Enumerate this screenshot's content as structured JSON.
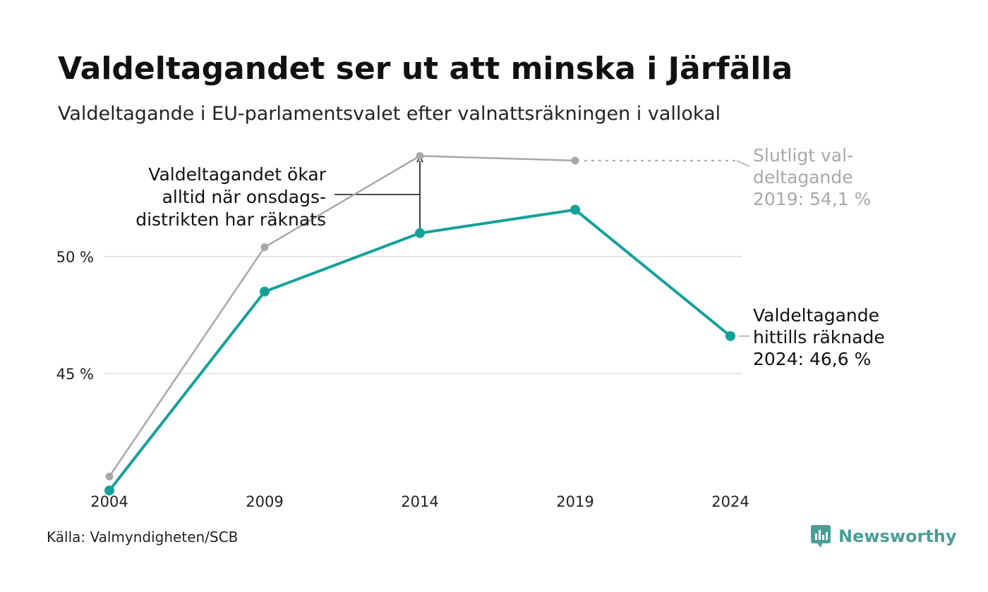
{
  "title": "Valdeltagandet ser ut att minska i Järfälla",
  "subtitle": "Valdeltagande i EU-parlamentsvalet efter valnattsräkningen i vallokal",
  "source": "Källa: Valmyndigheten/SCB",
  "brand": {
    "name": "Newsworthy",
    "icon": "newsworthy-logo-icon"
  },
  "chart_data": {
    "type": "line",
    "x": [
      2004,
      2009,
      2014,
      2019,
      2024
    ],
    "x_ticks": [
      "2004",
      "2009",
      "2014",
      "2019",
      "2024"
    ],
    "y_ticks": [
      {
        "value": 45,
        "label": "45 %"
      },
      {
        "value": 50,
        "label": "50 %"
      }
    ],
    "ylim": [
      40.0,
      56.0
    ],
    "grid": true,
    "series": [
      {
        "key": "final",
        "color": "#a8a8a8",
        "values": [
          40.6,
          50.4,
          54.3,
          54.1,
          null
        ]
      },
      {
        "key": "election_night",
        "color": "#14a19a",
        "values": [
          40.0,
          48.5,
          51.0,
          52.0,
          46.6
        ]
      }
    ],
    "annotations": {
      "gap_note": [
        "Valdeltagandet ökar",
        "alltid när onsdags-",
        "distrikten har räknats"
      ],
      "final_note": [
        "Slutligt val-",
        "deltagande",
        "2019: 54,1 %"
      ],
      "current_note": [
        "Valdeltagande",
        "hittills räknade",
        "2024: 46,6 %"
      ]
    }
  },
  "colors": {
    "accent": "#14a19a",
    "final": "#a8a8a8",
    "grid": "#e6e6e6",
    "brand": "#4a9e96"
  }
}
